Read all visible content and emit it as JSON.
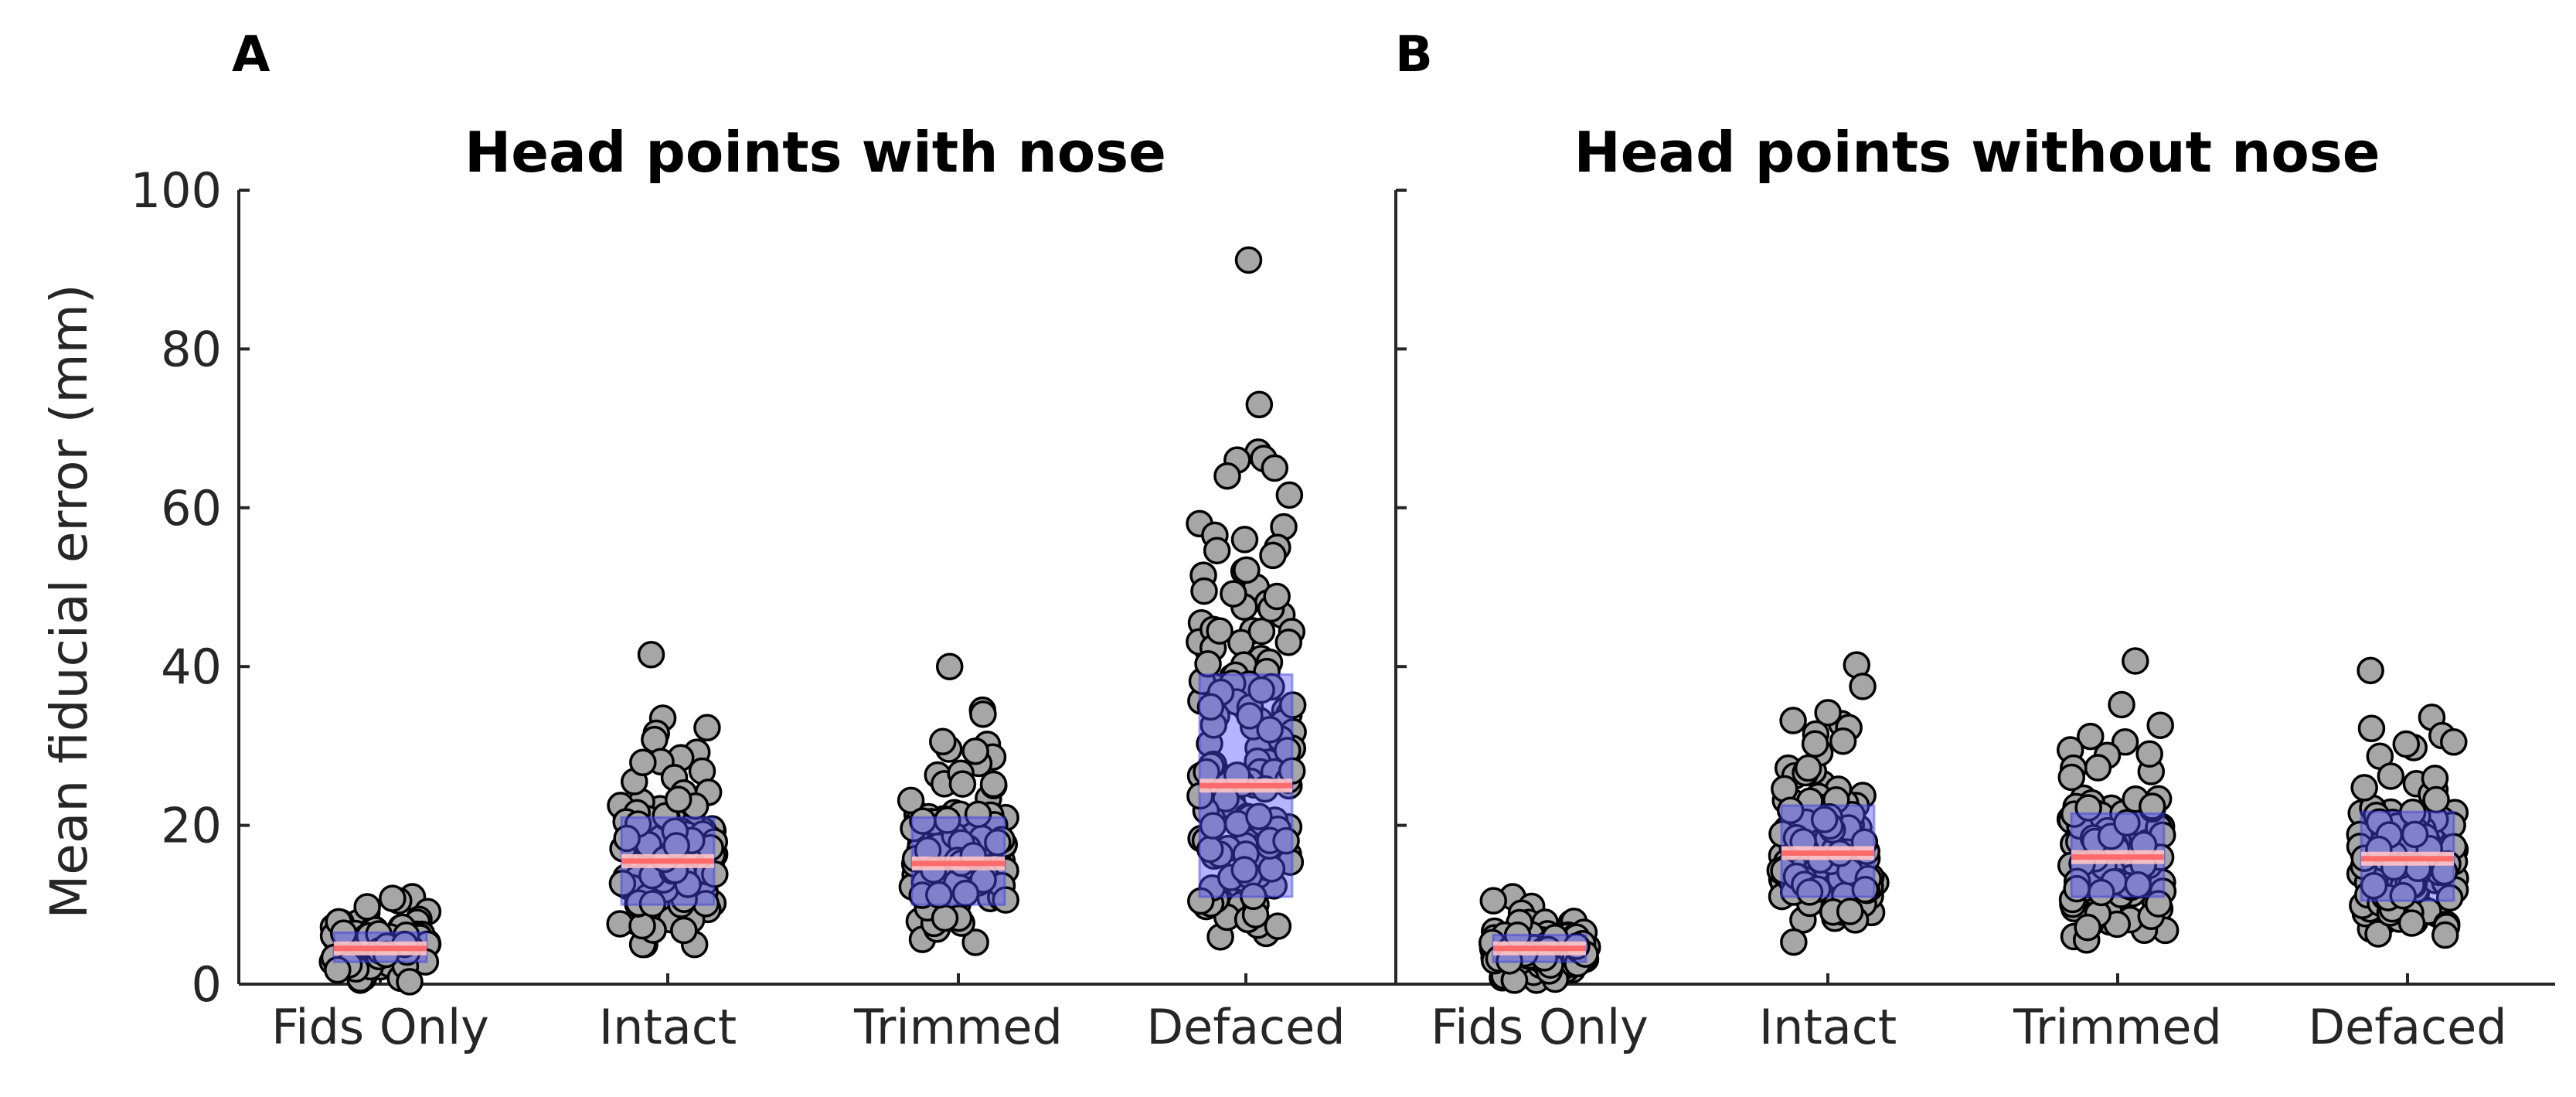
{
  "chart_data": [
    {
      "type": "scatter",
      "panel_label": "A",
      "title": "Head points with nose",
      "ylabel": "Mean fiducial error (mm)",
      "xlabel": "",
      "ylim": [
        0,
        100
      ],
      "yticks": [
        0,
        20,
        40,
        60,
        80,
        100
      ],
      "categories": [
        "Fids Only",
        "Intact",
        "Trimmed",
        "Defaced"
      ],
      "groups": [
        {
          "name": "Fids Only",
          "q1": 2.8,
          "median": 4.5,
          "q3": 6.5,
          "min": 0.3,
          "max": 11,
          "n": 120,
          "extremes": [
            11,
            10.5,
            10.8,
            0.5,
            0.8
          ]
        },
        {
          "name": "Intact",
          "q1": 10,
          "median": 15.5,
          "q3": 21,
          "min": 5,
          "max": 41.5,
          "n": 140,
          "extremes": [
            41.5,
            33.5,
            32.3,
            31.6,
            30.8,
            29.2,
            28.5
          ]
        },
        {
          "name": "Trimmed",
          "q1": 10,
          "median": 15.2,
          "q3": 21,
          "min": 4.6,
          "max": 40,
          "n": 140,
          "extremes": [
            40,
            34.5,
            34,
            30.2,
            29.6,
            28.6,
            27.8
          ]
        },
        {
          "name": "Defaced",
          "q1": 11,
          "median": 25,
          "q3": 39,
          "min": 5.5,
          "max": 91.2,
          "n": 160,
          "extremes": [
            91.2,
            73,
            67,
            66.2,
            66,
            65,
            64,
            61.6,
            58,
            57.6,
            56,
            55,
            54,
            52,
            51.5,
            50,
            49.5,
            48,
            47.5,
            46.5,
            45.5,
            44.5,
            43,
            42.3,
            41,
            40.2
          ]
        }
      ]
    },
    {
      "type": "scatter",
      "panel_label": "B",
      "title": "Head points without nose",
      "ylabel": "",
      "xlabel": "",
      "ylim": [
        0,
        100
      ],
      "categories": [
        "Fids Only",
        "Intact",
        "Trimmed",
        "Defaced"
      ],
      "groups": [
        {
          "name": "Fids Only",
          "q1": 2.8,
          "median": 4.5,
          "q3": 6.2,
          "min": 0.5,
          "max": 11,
          "n": 120,
          "extremes": [
            11,
            10.5,
            9.8,
            0.8,
            1.0
          ]
        },
        {
          "name": "Intact",
          "q1": 11,
          "median": 16.5,
          "q3": 22.5,
          "min": 5.3,
          "max": 40.2,
          "n": 140,
          "extremes": [
            40.2,
            37.5,
            33.2,
            32.8,
            32.3,
            31.5,
            30.6
          ]
        },
        {
          "name": "Trimmed",
          "q1": 11,
          "median": 16,
          "q3": 21.5,
          "min": 5.5,
          "max": 40.7,
          "n": 140,
          "extremes": [
            40.7,
            35.2,
            32.6,
            31.2,
            30.5,
            29.5,
            28.8
          ]
        },
        {
          "name": "Defaced",
          "q1": 10.5,
          "median": 15.8,
          "q3": 21.7,
          "min": 5.5,
          "max": 39.5,
          "n": 140,
          "extremes": [
            39.5,
            33.6,
            32.2,
            31.3,
            30.5,
            29.8,
            28.7
          ]
        }
      ]
    }
  ]
}
